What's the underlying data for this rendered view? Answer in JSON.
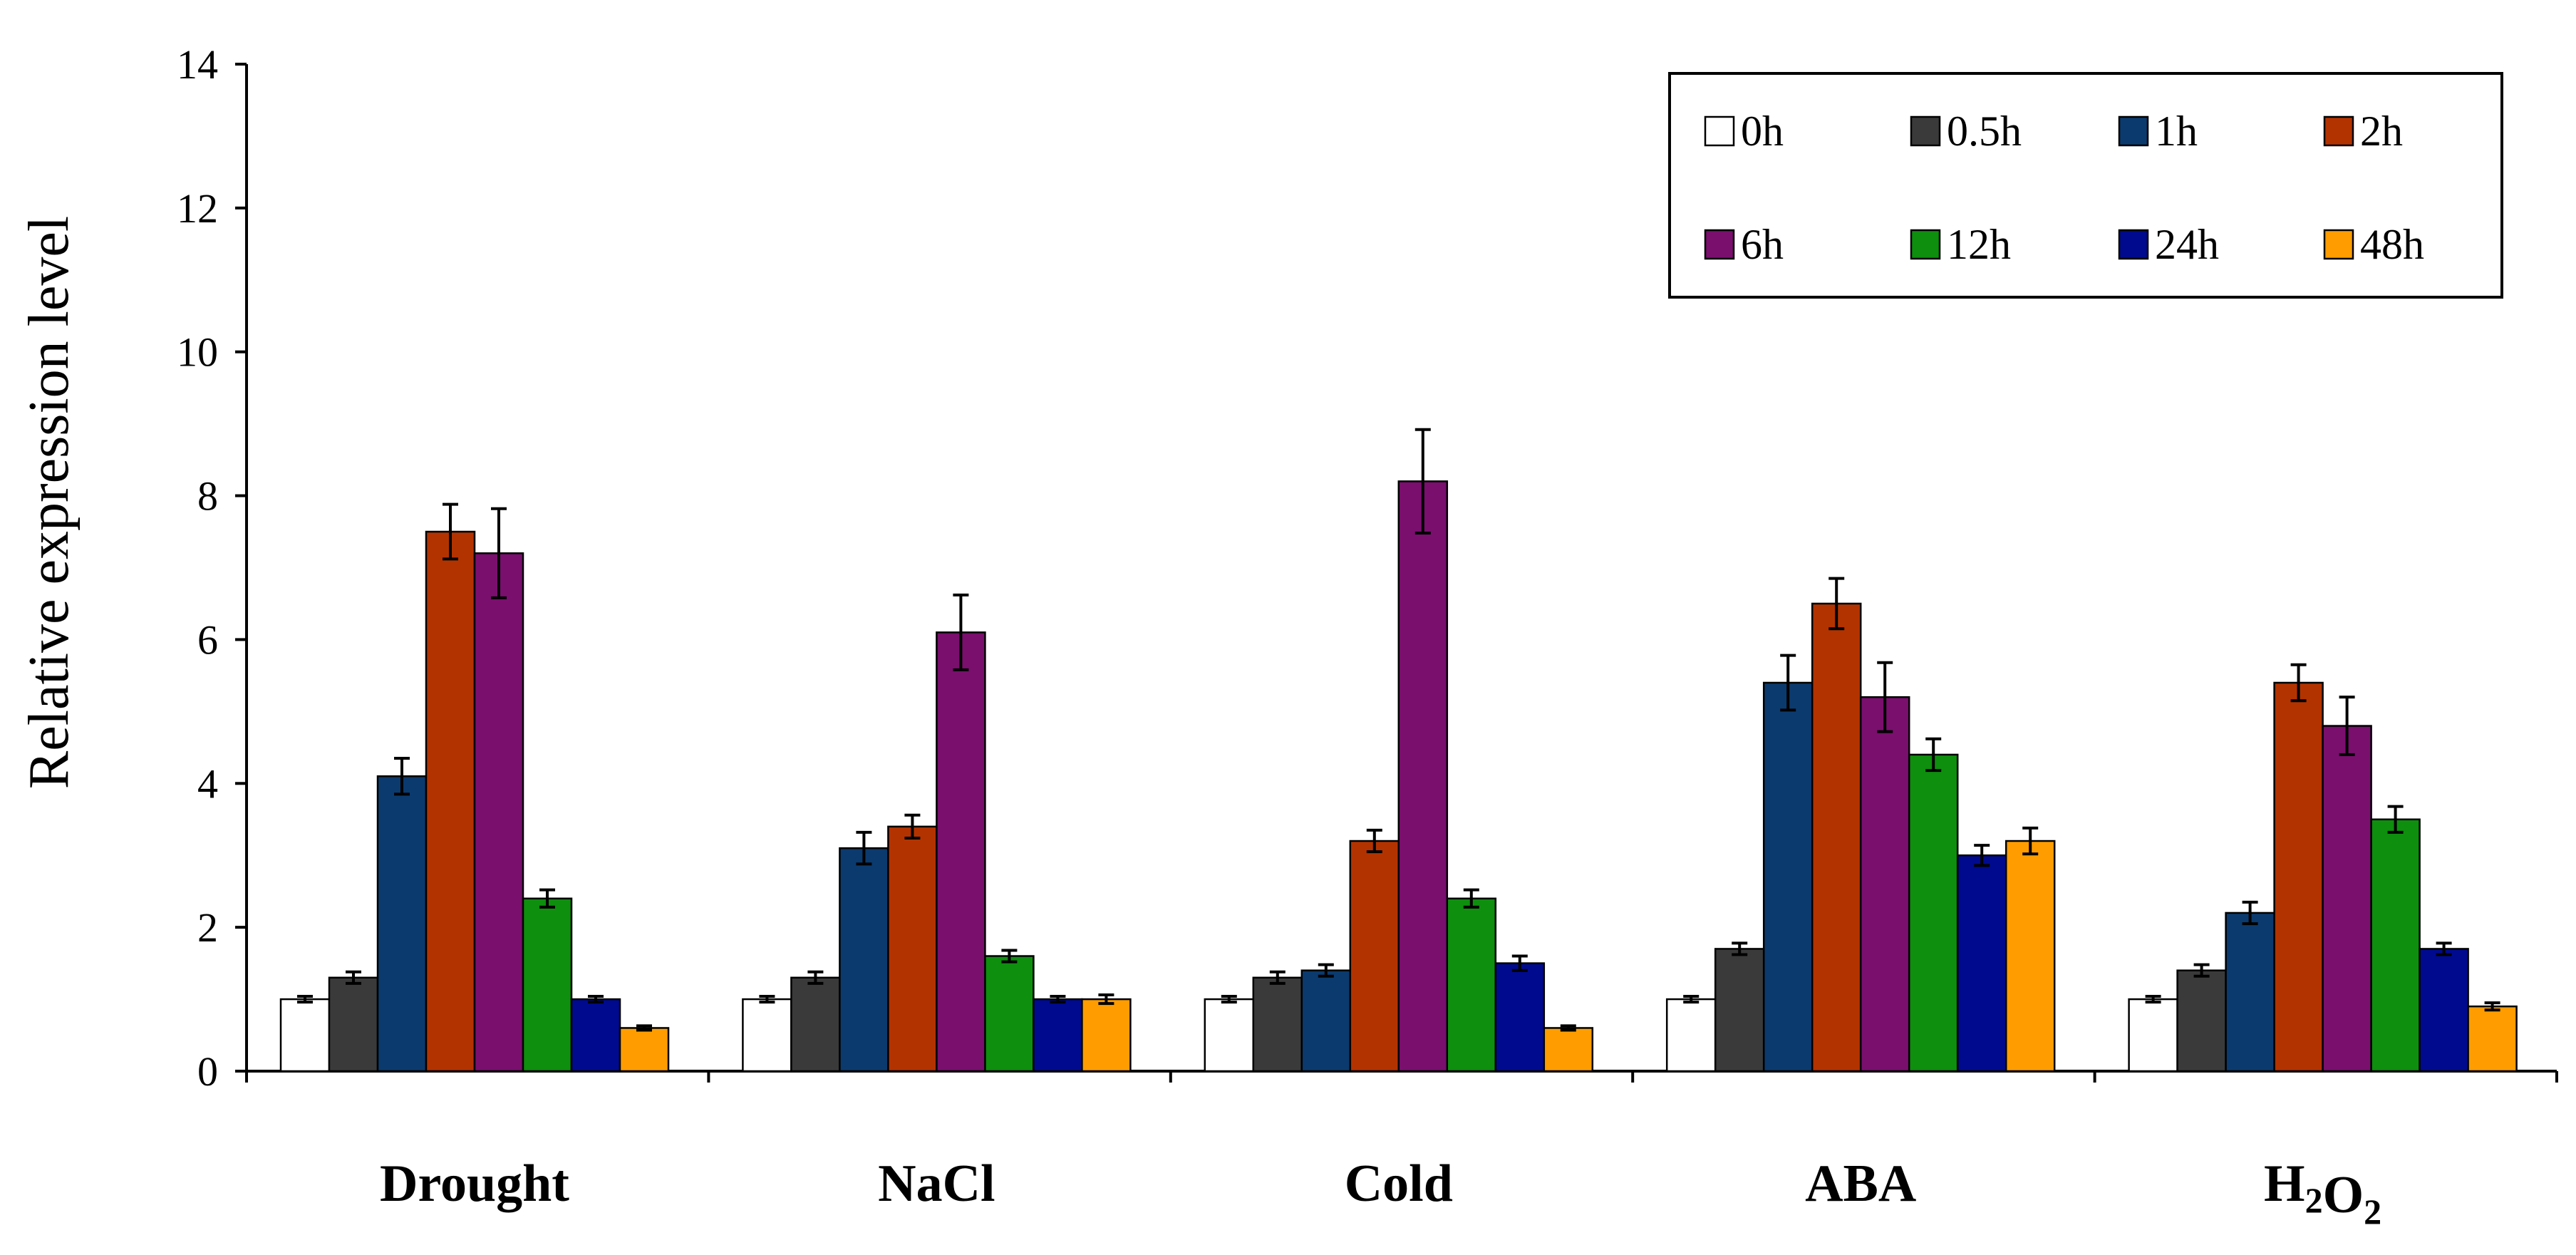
{
  "chart_data": {
    "type": "bar",
    "title": "",
    "xlabel": "",
    "ylabel": "Relative expression level",
    "ylim": [
      0,
      14
    ],
    "yticks": [
      0,
      2,
      4,
      6,
      8,
      10,
      12,
      14
    ],
    "grid": false,
    "legend_position": "top-right",
    "categories": [
      "Drought",
      "NaCl",
      "Cold",
      "ABA",
      "H2O2"
    ],
    "series": [
      {
        "name": "0h",
        "color": "#ffffff",
        "values": [
          1.0,
          1.0,
          1.0,
          1.0,
          1.0
        ],
        "errors": [
          0.04,
          0.04,
          0.04,
          0.04,
          0.04
        ]
      },
      {
        "name": "0.5h",
        "color": "#3a3a3a",
        "values": [
          1.3,
          1.3,
          1.3,
          1.7,
          1.4
        ],
        "errors": [
          0.08,
          0.08,
          0.08,
          0.08,
          0.08
        ]
      },
      {
        "name": "1h",
        "color": "#0b3a6e",
        "values": [
          4.1,
          3.1,
          1.4,
          5.4,
          2.2
        ],
        "errors": [
          0.25,
          0.22,
          0.08,
          0.38,
          0.15
        ]
      },
      {
        "name": "2h",
        "color": "#b33300",
        "values": [
          7.5,
          3.4,
          3.2,
          6.5,
          5.4
        ],
        "errors": [
          0.38,
          0.16,
          0.15,
          0.35,
          0.25
        ]
      },
      {
        "name": "6h",
        "color": "#7a0f6e",
        "values": [
          7.2,
          6.1,
          8.2,
          5.2,
          4.8
        ],
        "errors": [
          0.62,
          0.52,
          0.72,
          0.48,
          0.4
        ]
      },
      {
        "name": "12h",
        "color": "#0e8f0e",
        "values": [
          2.4,
          1.6,
          2.4,
          4.4,
          3.5
        ],
        "errors": [
          0.12,
          0.08,
          0.12,
          0.22,
          0.18
        ]
      },
      {
        "name": "24h",
        "color": "#000a8f",
        "values": [
          1.0,
          1.0,
          1.5,
          3.0,
          1.7
        ],
        "errors": [
          0.04,
          0.04,
          0.1,
          0.14,
          0.08
        ]
      },
      {
        "name": "48h",
        "color": "#ff9d00",
        "values": [
          0.6,
          1.0,
          0.6,
          3.2,
          0.9
        ],
        "errors": [
          0.03,
          0.06,
          0.03,
          0.18,
          0.05
        ]
      }
    ]
  }
}
